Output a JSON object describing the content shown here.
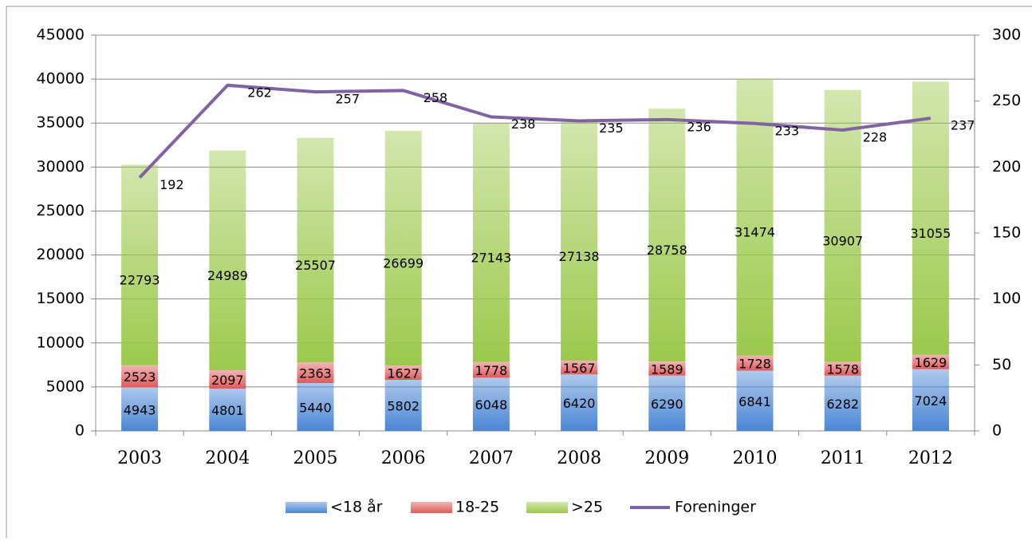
{
  "chart_data": {
    "type": "bar",
    "categories": [
      "2003",
      "2004",
      "2005",
      "2006",
      "2007",
      "2008",
      "2009",
      "2010",
      "2011",
      "2012"
    ],
    "series": [
      {
        "name": "<18 år",
        "color": "#4a86d4",
        "values": [
          4943,
          4801,
          5440,
          5802,
          6048,
          6420,
          6290,
          6841,
          6282,
          7024
        ]
      },
      {
        "name": "18-25",
        "color": "#e05a5a",
        "values": [
          2523,
          2097,
          2363,
          1627,
          1778,
          1567,
          1589,
          1728,
          1578,
          1629
        ]
      },
      {
        "name": ">25",
        "color": "#9cc94c",
        "values": [
          22793,
          24989,
          25507,
          26699,
          27143,
          27138,
          28758,
          31474,
          30907,
          31055
        ]
      },
      {
        "name": "Foreninger",
        "color": "#8064a2",
        "type": "line",
        "axis": "y2",
        "values": [
          192,
          262,
          257,
          258,
          238,
          235,
          236,
          233,
          228,
          237
        ]
      }
    ],
    "ylim": [
      0,
      45000
    ],
    "yticks": [
      0,
      5000,
      10000,
      15000,
      20000,
      25000,
      30000,
      35000,
      40000,
      45000
    ],
    "y2lim": [
      0,
      300
    ],
    "y2ticks": [
      0,
      50,
      100,
      150,
      200,
      250,
      300
    ],
    "stacked": true,
    "grid": true,
    "legend": "bottom"
  }
}
